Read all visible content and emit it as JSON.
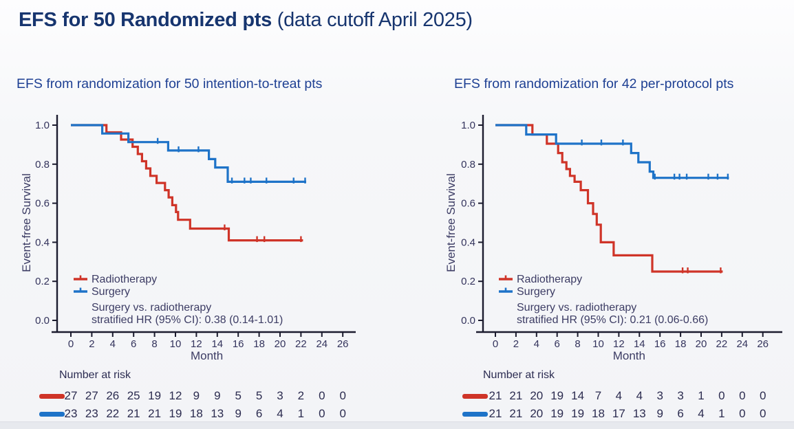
{
  "page_title": {
    "bold": "EFS for 50 Randomized pts",
    "normal": " (data cutoff April 2025)"
  },
  "colors": {
    "title_navy": "#17356f",
    "subtitle_blue": "#1e4093",
    "radiotherapy_red": "#cf3428",
    "surgery_blue": "#1e73c8",
    "axis_ink": "#1b1b2e",
    "text_ink": "#3c3c64"
  },
  "chart_data": [
    {
      "type": "line",
      "subtype": "kaplan-meier-step",
      "subtitle": "EFS from randomization for 50 intention-to-treat pts",
      "xlabel": "Month",
      "ylabel": "Event-free Survival",
      "xlim": [
        0,
        26
      ],
      "ylim": [
        0.0,
        1.0
      ],
      "x_ticks": [
        0,
        2,
        4,
        6,
        8,
        10,
        12,
        14,
        16,
        18,
        20,
        22,
        24,
        26
      ],
      "y_ticks": [
        "0.0",
        "0.2",
        "0.4",
        "0.6",
        "0.8",
        "1.0"
      ],
      "grid": false,
      "legend_position": "lower-left-inside",
      "legend": [
        {
          "label": "Radiotherapy",
          "color": "#cf3428"
        },
        {
          "label": "Surgery",
          "color": "#1e73c8"
        }
      ],
      "annotation": [
        "Surgery vs. radiotherapy",
        "stratified HR (95% CI): 0.38 (0.14-1.01)"
      ],
      "series": [
        {
          "name": "Radiotherapy",
          "color": "#cf3428",
          "steps": [
            [
              0,
              1.0
            ],
            [
              3.4,
              0.963
            ],
            [
              4.8,
              0.926
            ],
            [
              5.9,
              0.889
            ],
            [
              6.4,
              0.852
            ],
            [
              6.8,
              0.815
            ],
            [
              7.2,
              0.778
            ],
            [
              7.6,
              0.74
            ],
            [
              8.2,
              0.704
            ],
            [
              9.0,
              0.667
            ],
            [
              9.35,
              0.63
            ],
            [
              9.7,
              0.59
            ],
            [
              10.05,
              0.555
            ],
            [
              10.25,
              0.515
            ],
            [
              11.4,
              0.47
            ],
            [
              15.1,
              0.41
            ]
          ],
          "censors": [
            [
              14.7,
              0.47
            ],
            [
              17.8,
              0.41
            ],
            [
              18.5,
              0.41
            ],
            [
              22.0,
              0.41
            ]
          ],
          "end": 22.2
        },
        {
          "name": "Surgery",
          "color": "#1e73c8",
          "steps": [
            [
              0,
              1.0
            ],
            [
              3.0,
              0.957
            ],
            [
              5.5,
              0.913
            ],
            [
              9.3,
              0.87
            ],
            [
              13.2,
              0.826
            ],
            [
              13.8,
              0.783
            ],
            [
              15.0,
              0.71
            ]
          ],
          "censors": [
            [
              8.3,
              0.913
            ],
            [
              10.3,
              0.87
            ],
            [
              12.2,
              0.87
            ],
            [
              15.4,
              0.71
            ],
            [
              16.6,
              0.71
            ],
            [
              17.2,
              0.71
            ],
            [
              18.7,
              0.71
            ],
            [
              21.3,
              0.71
            ],
            [
              22.4,
              0.71
            ]
          ],
          "end": 22.5
        }
      ],
      "risk_table": {
        "label": "Number at risk",
        "time_points": [
          0,
          2,
          4,
          6,
          8,
          10,
          12,
          14,
          16,
          18,
          20,
          22,
          24,
          26
        ],
        "rows": [
          {
            "name": "Radiotherapy",
            "color": "#cf3428",
            "values": [
              27,
              27,
              26,
              25,
              19,
              12,
              9,
              9,
              5,
              5,
              3,
              2,
              0,
              0
            ]
          },
          {
            "name": "Surgery",
            "color": "#1e73c8",
            "values": [
              23,
              23,
              22,
              21,
              21,
              19,
              18,
              13,
              9,
              6,
              4,
              1,
              0,
              0
            ]
          }
        ]
      }
    },
    {
      "type": "line",
      "subtype": "kaplan-meier-step",
      "subtitle": "EFS from randomization for 42 per-protocol pts",
      "xlabel": "Month",
      "ylabel": "Event-free Survival",
      "xlim": [
        0,
        26
      ],
      "ylim": [
        0.0,
        1.0
      ],
      "x_ticks": [
        0,
        2,
        4,
        6,
        8,
        10,
        12,
        14,
        16,
        18,
        20,
        22,
        24,
        26
      ],
      "y_ticks": [
        "0.0",
        "0.2",
        "0.4",
        "0.6",
        "0.8",
        "1.0"
      ],
      "grid": false,
      "legend_position": "lower-left-inside",
      "legend": [
        {
          "label": "Radiotherapy",
          "color": "#cf3428"
        },
        {
          "label": "Surgery",
          "color": "#1e73c8"
        }
      ],
      "annotation": [
        "Surgery vs. radiotherapy",
        "stratified HR (95% CI): 0.21 (0.06-0.66)"
      ],
      "series": [
        {
          "name": "Radiotherapy",
          "color": "#cf3428",
          "steps": [
            [
              0,
              1.0
            ],
            [
              3.6,
              0.952
            ],
            [
              5.0,
              0.905
            ],
            [
              6.1,
              0.857
            ],
            [
              6.5,
              0.81
            ],
            [
              6.9,
              0.775
            ],
            [
              7.25,
              0.74
            ],
            [
              7.7,
              0.71
            ],
            [
              8.3,
              0.667
            ],
            [
              9.0,
              0.6
            ],
            [
              9.5,
              0.545
            ],
            [
              9.85,
              0.49
            ],
            [
              10.25,
              0.4
            ],
            [
              11.5,
              0.333
            ],
            [
              15.25,
              0.25
            ]
          ],
          "censors": [
            [
              18.2,
              0.25
            ],
            [
              18.7,
              0.25
            ],
            [
              21.9,
              0.25
            ]
          ],
          "end": 22.1
        },
        {
          "name": "Surgery",
          "color": "#1e73c8",
          "steps": [
            [
              0,
              1.0
            ],
            [
              3.0,
              0.952
            ],
            [
              5.9,
              0.905
            ],
            [
              13.2,
              0.857
            ],
            [
              13.9,
              0.81
            ],
            [
              15.0,
              0.762
            ],
            [
              15.35,
              0.73
            ]
          ],
          "censors": [
            [
              8.4,
              0.905
            ],
            [
              10.3,
              0.905
            ],
            [
              12.4,
              0.905
            ],
            [
              15.5,
              0.73
            ],
            [
              17.4,
              0.73
            ],
            [
              17.9,
              0.73
            ],
            [
              18.6,
              0.73
            ],
            [
              20.7,
              0.73
            ],
            [
              21.6,
              0.73
            ],
            [
              22.6,
              0.73
            ]
          ],
          "end": 22.7
        }
      ],
      "risk_table": {
        "label": "Number at risk",
        "time_points": [
          0,
          2,
          4,
          6,
          8,
          10,
          12,
          14,
          16,
          18,
          20,
          22,
          24,
          26
        ],
        "rows": [
          {
            "name": "Radiotherapy",
            "color": "#cf3428",
            "values": [
              21,
              21,
              20,
              19,
              14,
              7,
              4,
              4,
              3,
              3,
              1,
              0,
              0,
              0
            ]
          },
          {
            "name": "Surgery",
            "color": "#1e73c8",
            "values": [
              21,
              21,
              20,
              19,
              19,
              18,
              17,
              13,
              9,
              6,
              4,
              1,
              0,
              0
            ]
          }
        ]
      }
    }
  ]
}
